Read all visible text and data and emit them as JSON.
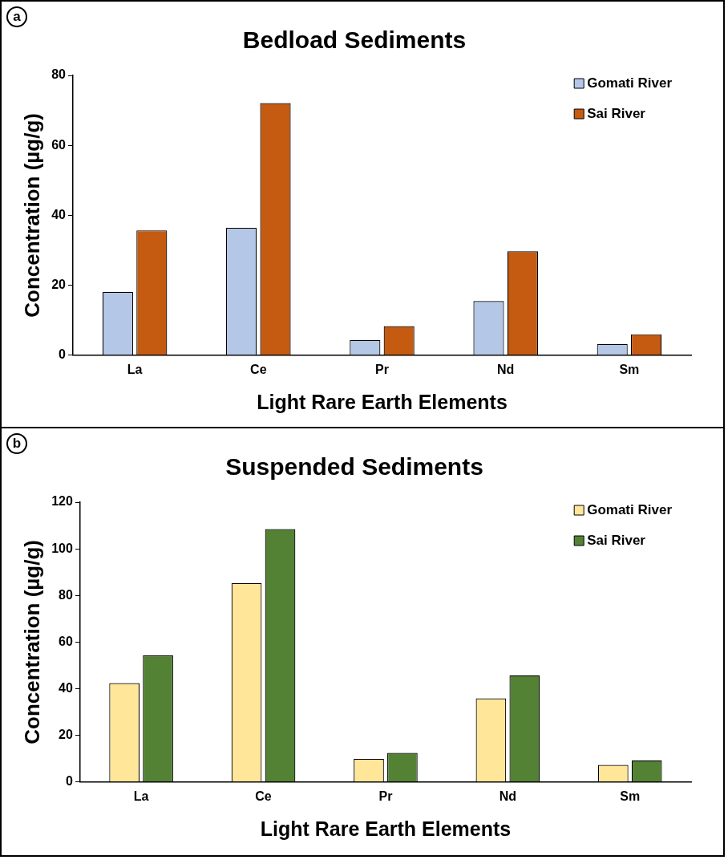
{
  "chart_data": [
    {
      "type": "bar",
      "title": "Bedload Sediments",
      "xlabel": "Light Rare Earth Elements",
      "ylabel": "Concentration (µg/g)",
      "annotations": [
        "a"
      ],
      "categories": [
        "La",
        "Ce",
        "Pr",
        "Nd",
        "Sm"
      ],
      "series": [
        {
          "name": "Gomati River",
          "color": "#b4c7e7",
          "values": [
            18.1,
            36.4,
            4.3,
            15.5,
            3.2
          ]
        },
        {
          "name": "Sai River",
          "color": "#c55a11",
          "values": [
            35.7,
            72.1,
            8.3,
            29.7,
            6.0
          ]
        }
      ],
      "ylim": [
        0,
        80
      ],
      "yticks": [
        0,
        20,
        40,
        60,
        80
      ],
      "grid": false,
      "legend": "top right"
    },
    {
      "type": "bar",
      "title": "Suspended Sediments",
      "xlabel": "Light Rare Earth Elements",
      "ylabel": "Concentration (µg/g)",
      "annotations": [
        "b"
      ],
      "categories": [
        "La",
        "Ce",
        "Pr",
        "Nd",
        "Sm"
      ],
      "series": [
        {
          "name": "Gomati River",
          "color": "#ffe699",
          "values": [
            42.4,
            85.3,
            9.9,
            35.9,
            7.3
          ]
        },
        {
          "name": "Sai River",
          "color": "#548235",
          "values": [
            54.3,
            108.5,
            12.5,
            45.8,
            9.3
          ]
        }
      ],
      "ylim": [
        0,
        120
      ],
      "yticks": [
        0,
        20,
        40,
        60,
        80,
        100,
        120
      ],
      "grid": false,
      "legend": "top right"
    }
  ]
}
